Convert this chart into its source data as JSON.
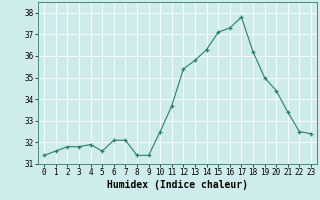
{
  "x": [
    0,
    1,
    2,
    3,
    4,
    5,
    6,
    7,
    8,
    9,
    10,
    11,
    12,
    13,
    14,
    15,
    16,
    17,
    18,
    19,
    20,
    21,
    22,
    23
  ],
  "y": [
    31.4,
    31.6,
    31.8,
    31.8,
    31.9,
    31.6,
    32.1,
    32.1,
    31.4,
    31.4,
    32.5,
    33.7,
    35.4,
    35.8,
    36.3,
    37.1,
    37.3,
    37.8,
    36.2,
    35.0,
    34.4,
    33.4,
    32.5,
    32.4
  ],
  "xlabel": "Humidex (Indice chaleur)",
  "ylabel": "",
  "xlim": [
    -0.5,
    23.5
  ],
  "ylim": [
    31,
    38.5
  ],
  "yticks": [
    31,
    32,
    33,
    34,
    35,
    36,
    37,
    38
  ],
  "xticks": [
    0,
    1,
    2,
    3,
    4,
    5,
    6,
    7,
    8,
    9,
    10,
    11,
    12,
    13,
    14,
    15,
    16,
    17,
    18,
    19,
    20,
    21,
    22,
    23
  ],
  "line_color": "#2e7d6e",
  "marker": "+",
  "bg_color": "#cdecea",
  "grid_color": "#ffffff",
  "tick_fontsize": 5.5,
  "xlabel_fontsize": 7.0
}
